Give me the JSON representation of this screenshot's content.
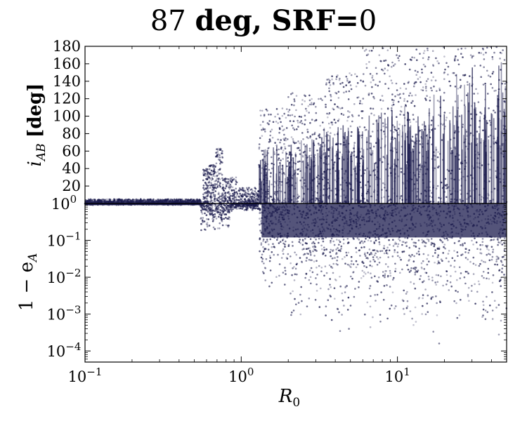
{
  "title": {
    "prefix": "87",
    "bold": "deg, SRF=",
    "suffix": "0"
  },
  "chart_data": [
    {
      "type": "scatter",
      "panel": "top",
      "ylabel_main": "i",
      "ylabel_sub": "AB",
      "ylabel_unit": "[deg]",
      "xscale": "log",
      "xlim": [
        0.1,
        50
      ],
      "ylim": [
        0,
        180
      ],
      "yticks": [
        20,
        40,
        60,
        80,
        100,
        120,
        140,
        160,
        180
      ],
      "marker_color": "#1b1b4d",
      "clusters": [
        {
          "x_range": [
            0.1,
            0.55
          ],
          "y_range": [
            0,
            5
          ]
        },
        {
          "x_range": [
            0.57,
            0.62
          ],
          "y_range": [
            0,
            40
          ]
        },
        {
          "x_range": [
            0.62,
            0.68
          ],
          "y_range": [
            0,
            45
          ]
        },
        {
          "x_range": [
            0.68,
            0.76
          ],
          "y_range": [
            0,
            65
          ]
        },
        {
          "x_range": [
            0.76,
            0.95
          ],
          "y_range": [
            0,
            30
          ]
        },
        {
          "x_range": [
            0.95,
            1.3
          ],
          "y_range": [
            0,
            18
          ]
        },
        {
          "x_range": [
            1.3,
            2.0
          ],
          "y_range": [
            0,
            110
          ]
        },
        {
          "x_range": [
            2.0,
            3.5
          ],
          "y_range": [
            0,
            130
          ]
        },
        {
          "x_range": [
            3.5,
            6.0
          ],
          "y_range": [
            0,
            150
          ]
        },
        {
          "x_range": [
            6.0,
            50
          ],
          "y_range": [
            0,
            180
          ]
        }
      ]
    },
    {
      "type": "scatter",
      "panel": "bottom",
      "ylabel": "1 − e",
      "ylabel_sub": "A",
      "xlabel_main": "R",
      "xlabel_sub": "0",
      "xscale": "log",
      "yscale": "log",
      "xlim": [
        0.1,
        50
      ],
      "ylim": [
        5e-05,
        1
      ],
      "xticks": [
        {
          "value": 0.1,
          "base": "10",
          "exp": "−1"
        },
        {
          "value": 1,
          "base": "10",
          "exp": "0"
        },
        {
          "value": 10,
          "base": "10",
          "exp": "1"
        }
      ],
      "yticks": [
        {
          "value": 1,
          "base": "10",
          "exp": "0"
        },
        {
          "value": 0.1,
          "base": "10",
          "exp": "−1"
        },
        {
          "value": 0.01,
          "base": "10",
          "exp": "−2"
        },
        {
          "value": 0.001,
          "base": "10",
          "exp": "−3"
        },
        {
          "value": 0.0001,
          "base": "10",
          "exp": "−4"
        }
      ],
      "marker_color": "#1b1b4d",
      "clusters": [
        {
          "x_range": [
            0.1,
            0.55
          ],
          "y_range": [
            0.9,
            1
          ]
        },
        {
          "x_range": [
            0.55,
            0.85
          ],
          "y_range": [
            0.15,
            1
          ]
        },
        {
          "x_range": [
            0.85,
            1.3
          ],
          "y_range": [
            0.6,
            1
          ]
        },
        {
          "x_range": [
            1.3,
            2.0
          ],
          "y_range": [
            0.003,
            1
          ]
        },
        {
          "x_range": [
            2.0,
            50
          ],
          "y_range": [
            0.0001,
            1
          ]
        }
      ]
    }
  ]
}
